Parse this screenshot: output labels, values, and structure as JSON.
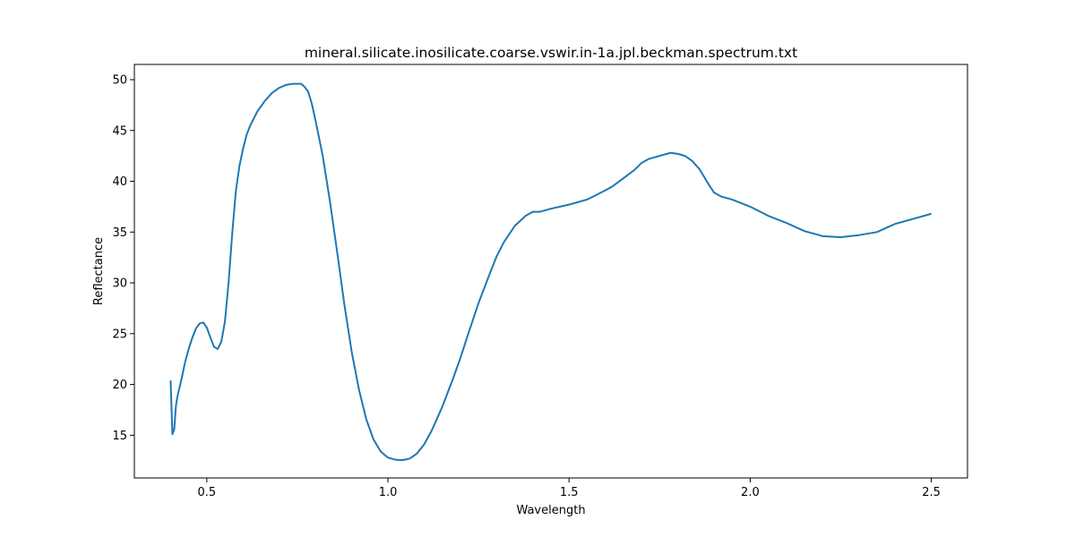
{
  "chart_data": {
    "type": "line",
    "title": "mineral.silicate.inosilicate.coarse.vswir.in-1a.jpl.beckman.spectrum.txt",
    "xlabel": "Wavelength",
    "ylabel": "Reflectance",
    "xlim": [
      0.3,
      2.6
    ],
    "ylim": [
      10.8,
      51.5
    ],
    "xticks": [
      "0.5",
      "1.0",
      "1.5",
      "2.0",
      "2.5"
    ],
    "yticks": [
      "15",
      "20",
      "25",
      "30",
      "35",
      "40",
      "45",
      "50"
    ],
    "grid": false,
    "legend": "none",
    "series": [
      {
        "color": "#1f77b4",
        "x": [
          0.4,
          0.405,
          0.41,
          0.415,
          0.42,
          0.43,
          0.44,
          0.45,
          0.46,
          0.47,
          0.48,
          0.49,
          0.5,
          0.51,
          0.52,
          0.53,
          0.54,
          0.55,
          0.56,
          0.57,
          0.58,
          0.59,
          0.6,
          0.61,
          0.62,
          0.64,
          0.66,
          0.68,
          0.7,
          0.72,
          0.74,
          0.76,
          0.77,
          0.78,
          0.79,
          0.8,
          0.82,
          0.84,
          0.86,
          0.88,
          0.9,
          0.92,
          0.94,
          0.96,
          0.98,
          1.0,
          1.02,
          1.04,
          1.06,
          1.08,
          1.1,
          1.12,
          1.15,
          1.18,
          1.2,
          1.22,
          1.25,
          1.28,
          1.3,
          1.32,
          1.35,
          1.38,
          1.4,
          1.42,
          1.45,
          1.5,
          1.55,
          1.6,
          1.62,
          1.65,
          1.68,
          1.7,
          1.72,
          1.75,
          1.78,
          1.8,
          1.82,
          1.84,
          1.86,
          1.88,
          1.9,
          1.92,
          1.95,
          2.0,
          2.05,
          2.1,
          2.15,
          2.2,
          2.25,
          2.3,
          2.35,
          2.4,
          2.45,
          2.5
        ],
        "y": [
          20.4,
          15.1,
          15.6,
          18.0,
          19.0,
          20.5,
          22.2,
          23.5,
          24.6,
          25.5,
          26.0,
          26.1,
          25.6,
          24.6,
          23.7,
          23.5,
          24.2,
          26.2,
          30.0,
          34.8,
          39.0,
          41.5,
          43.2,
          44.6,
          45.5,
          46.9,
          47.9,
          48.7,
          49.2,
          49.5,
          49.6,
          49.6,
          49.3,
          48.8,
          47.6,
          46.0,
          42.5,
          38.0,
          33.0,
          27.8,
          23.2,
          19.5,
          16.6,
          14.6,
          13.4,
          12.8,
          12.6,
          12.55,
          12.7,
          13.2,
          14.1,
          15.4,
          17.8,
          20.6,
          22.6,
          24.8,
          28.0,
          30.8,
          32.6,
          34.0,
          35.6,
          36.6,
          37.0,
          37.0,
          37.3,
          37.7,
          38.2,
          39.1,
          39.5,
          40.3,
          41.1,
          41.8,
          42.2,
          42.5,
          42.8,
          42.7,
          42.5,
          42.0,
          41.2,
          40.0,
          38.9,
          38.5,
          38.2,
          37.5,
          36.6,
          35.9,
          35.1,
          34.6,
          34.5,
          34.7,
          35.0,
          35.8,
          36.3,
          36.8
        ]
      }
    ]
  }
}
